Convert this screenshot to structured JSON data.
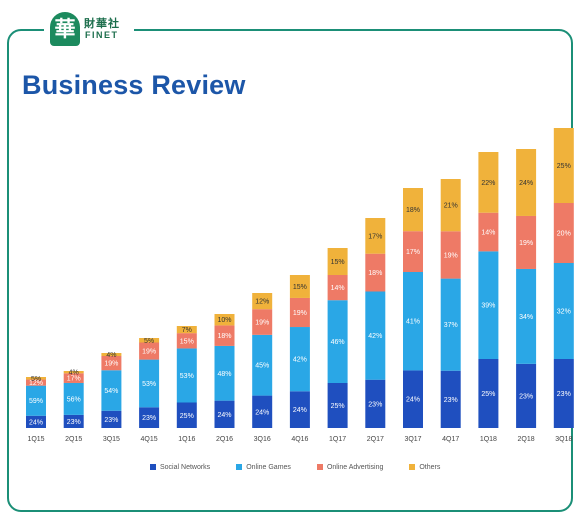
{
  "logo": {
    "mark": "華",
    "chinese": "財華社",
    "english": "FINET"
  },
  "title": "Business Review",
  "colors": {
    "frame": "#1b8f77",
    "title": "#1c56a8"
  },
  "chart_data": {
    "type": "bar",
    "stacked": true,
    "categories": [
      "1Q15",
      "2Q15",
      "3Q15",
      "4Q15",
      "1Q16",
      "2Q16",
      "3Q16",
      "4Q16",
      "1Q17",
      "2Q17",
      "3Q17",
      "4Q17",
      "1Q18",
      "2Q18",
      "3Q18"
    ],
    "total_height_relative": [
      0.17,
      0.19,
      0.25,
      0.3,
      0.34,
      0.38,
      0.45,
      0.51,
      0.6,
      0.7,
      0.8,
      0.83,
      0.92,
      0.93,
      1.0
    ],
    "series": [
      {
        "name": "Social Networks",
        "color": "#1f4fbf",
        "values": [
          24,
          23,
          23,
          23,
          25,
          24,
          24,
          24,
          25,
          23,
          24,
          23,
          25,
          23,
          23
        ]
      },
      {
        "name": "Online Games",
        "color": "#2aa7e6",
        "values": [
          59,
          56,
          54,
          53,
          53,
          48,
          45,
          42,
          46,
          42,
          41,
          37,
          39,
          34,
          32
        ]
      },
      {
        "name": "Online Advertising",
        "color": "#ee7a66",
        "values": [
          12,
          17,
          19,
          19,
          15,
          18,
          19,
          19,
          14,
          18,
          17,
          19,
          14,
          19,
          20
        ]
      },
      {
        "name": "Others",
        "color": "#f0b23b",
        "values": [
          5,
          4,
          4,
          5,
          7,
          10,
          12,
          15,
          15,
          17,
          18,
          21,
          22,
          24,
          25
        ]
      }
    ],
    "value_format": "percent",
    "legend": "bottom"
  }
}
